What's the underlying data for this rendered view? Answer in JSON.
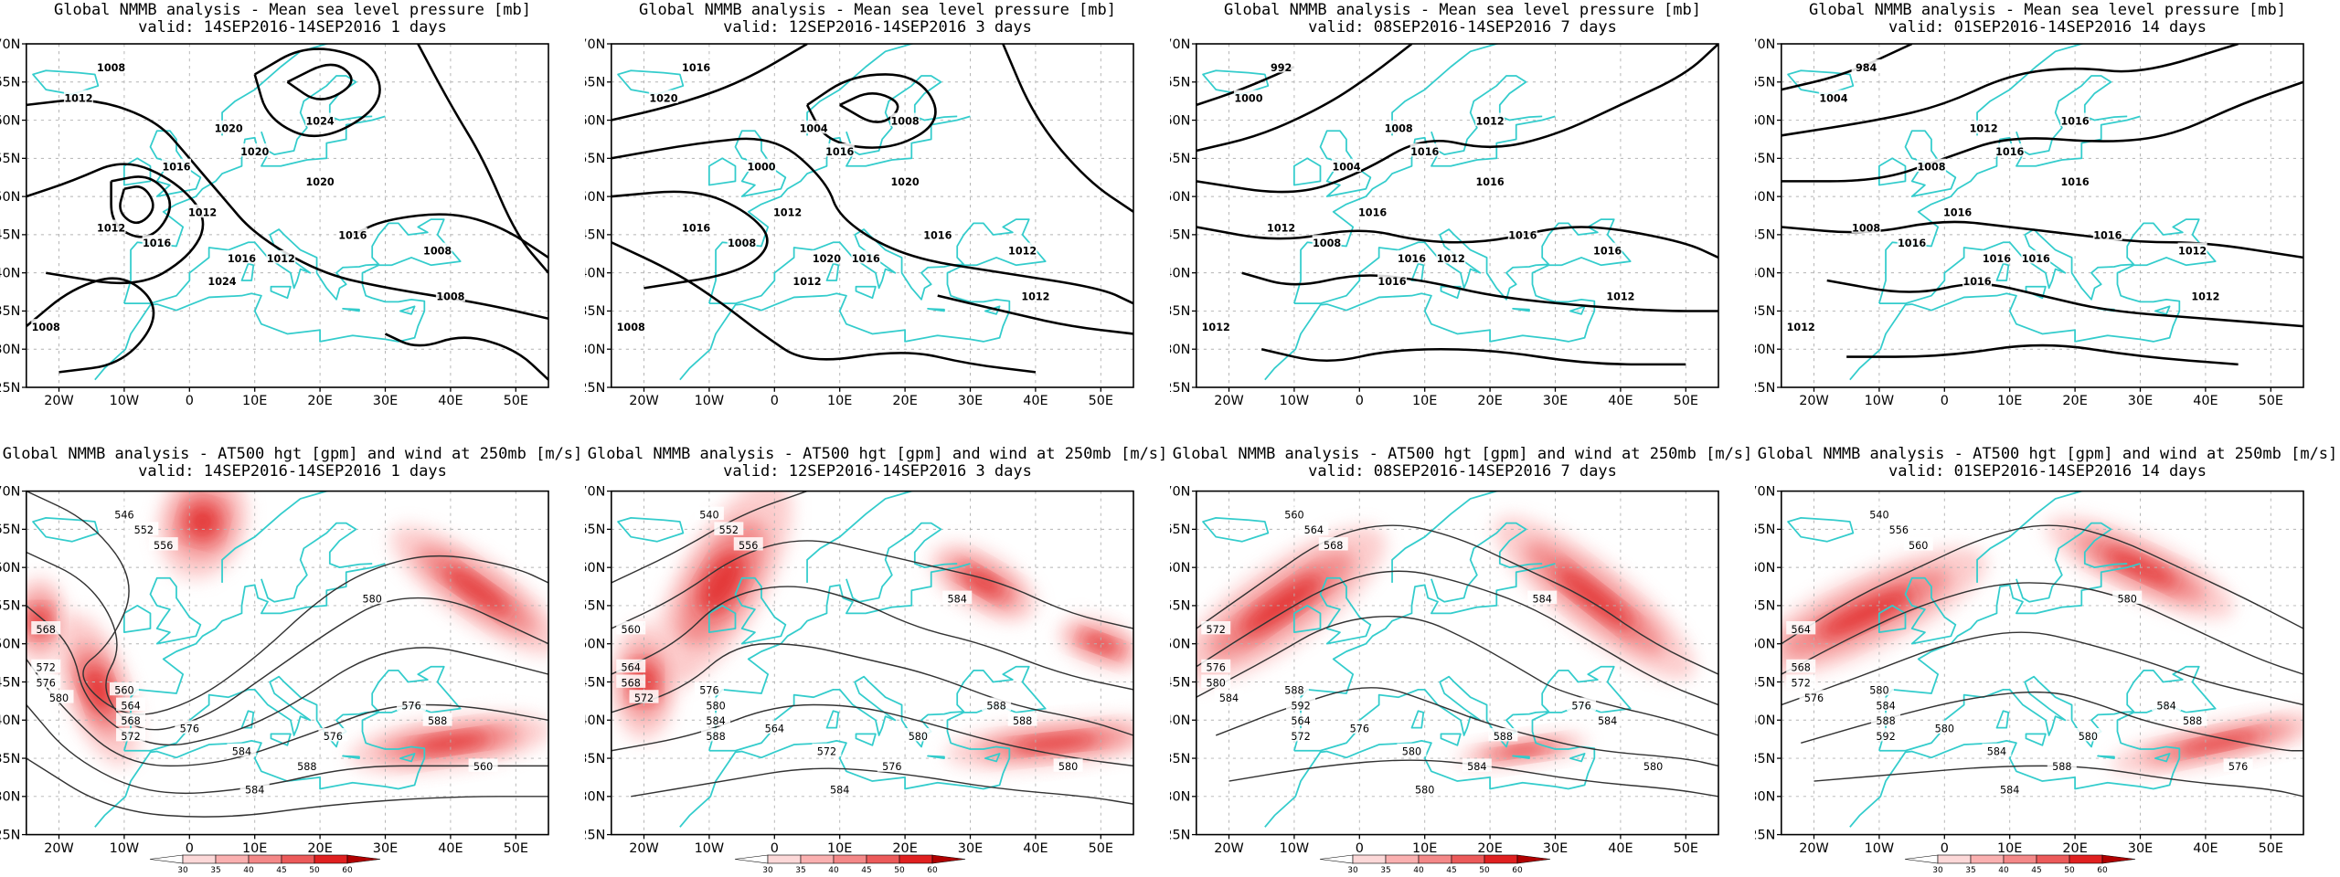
{
  "colors": {
    "coast": "#33cccc",
    "isobar": "#000000",
    "height_contour": "#333333",
    "grid": "#b4b4b4",
    "jet_light": "#fcc8c8",
    "jet_mid": "#f08080",
    "jet_dark": "#e02020"
  },
  "axes": {
    "lat_labels": [
      "70N",
      "65N",
      "60N",
      "55N",
      "50N",
      "45N",
      "40N",
      "35N",
      "30N",
      "25N"
    ],
    "lon_labels": [
      "20W",
      "10W",
      "0",
      "10E",
      "20E",
      "30E",
      "40E",
      "50E"
    ]
  },
  "top_panels": [
    {
      "title": "Global NMMB analysis - Mean sea level pressure [mb]",
      "subtitle": "valid: 14SEP2016-14SEP2016   1 days",
      "labels": [
        "1008",
        "1012",
        "1016",
        "1020",
        "1024",
        "1012",
        "1016",
        "1020",
        "1016",
        "1012",
        "1008",
        "1008",
        "1012",
        "1016",
        "1008",
        "1024",
        "1020"
      ]
    },
    {
      "title": "Global NMMB analysis - Mean sea level pressure [mb]",
      "subtitle": "valid: 12SEP2016-14SEP2016   3 days",
      "labels": [
        "1016",
        "1020",
        "1000",
        "1004",
        "1008",
        "1012",
        "1020",
        "1020",
        "1016",
        "1016",
        "1012",
        "1012",
        "1016",
        "1008",
        "1008",
        "1012",
        "1016"
      ]
    },
    {
      "title": "Global NMMB analysis - Mean sea level pressure [mb]",
      "subtitle": "valid: 08SEP2016-14SEP2016   7 days",
      "labels": [
        "992",
        "1000",
        "1004",
        "1008",
        "1012",
        "1016",
        "1016",
        "1016",
        "1016",
        "1012",
        "1016",
        "1012",
        "1012",
        "1008",
        "1012",
        "1016",
        "1016"
      ]
    },
    {
      "title": "Global NMMB analysis - Mean sea level pressure [mb]",
      "subtitle": "valid: 01SEP2016-14SEP2016   14 days",
      "labels": [
        "984",
        "1004",
        "1008",
        "1012",
        "1016",
        "1016",
        "1016",
        "1016",
        "1016",
        "1016",
        "1012",
        "1012",
        "1008",
        "1016",
        "1012",
        "1016",
        "1016"
      ]
    }
  ],
  "bottom_panels": [
    {
      "title": "Global NMMB analysis - AT500 hgt [gpm] and wind at 250mb [m/s]",
      "subtitle": "valid: 14SEP2016-14SEP2016   1 days",
      "labels": [
        "546",
        "552",
        "556",
        "568",
        "572",
        "576",
        "580",
        "560",
        "564",
        "568",
        "572",
        "576",
        "584",
        "588",
        "576",
        "584",
        "588",
        "560",
        "580",
        "576"
      ]
    },
    {
      "title": "Global NMMB analysis - AT500 hgt [gpm] and wind at 250mb [m/s]",
      "subtitle": "valid: 12SEP2016-14SEP2016   3 days",
      "labels": [
        "540",
        "552",
        "556",
        "560",
        "564",
        "568",
        "572",
        "576",
        "580",
        "584",
        "588",
        "564",
        "572",
        "576",
        "580",
        "584",
        "588",
        "580",
        "584",
        "588"
      ]
    },
    {
      "title": "Global NMMB analysis - AT500 hgt [gpm] and wind at 250mb [m/s]",
      "subtitle": "valid: 08SEP2016-14SEP2016   7 days",
      "labels": [
        "560",
        "564",
        "568",
        "572",
        "576",
        "580",
        "584",
        "588",
        "592",
        "564",
        "572",
        "576",
        "580",
        "584",
        "588",
        "580",
        "584",
        "580",
        "584",
        "576"
      ]
    },
    {
      "title": "Global NMMB analysis - AT500 hgt [gpm] and wind at 250mb [m/s]",
      "subtitle": "valid: 01SEP2016-14SEP2016   14 days",
      "labels": [
        "540",
        "556",
        "560",
        "564",
        "568",
        "572",
        "576",
        "580",
        "584",
        "588",
        "592",
        "580",
        "584",
        "588",
        "580",
        "584",
        "588",
        "576",
        "580",
        "584"
      ]
    }
  ],
  "legend": {
    "ticks": [
      "30",
      "35",
      "40",
      "45",
      "50",
      "60"
    ],
    "bins": [
      "#ffffff",
      "#fcd8d8",
      "#fab0b0",
      "#f48888",
      "#ec5a5a",
      "#e02020",
      "#b00000"
    ]
  }
}
